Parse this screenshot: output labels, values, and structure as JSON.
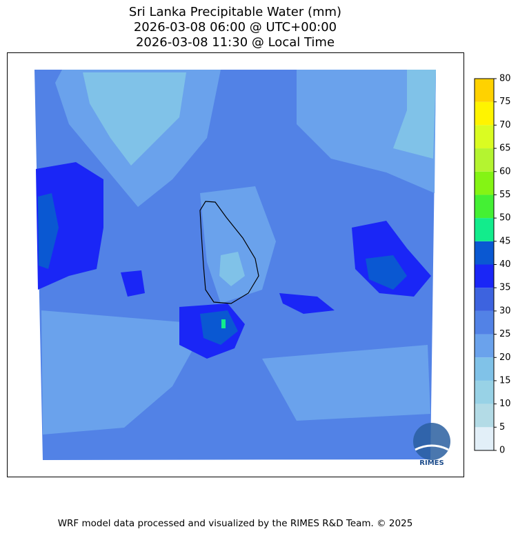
{
  "title": [
    "Sri Lanka Precipitable Water (mm)",
    "2026-03-08 06:00 @ UTC+00:00",
    "2026-03-08 11:30 @ Local Time"
  ],
  "colorbar": {
    "ticks": [
      0,
      5,
      10,
      15,
      20,
      25,
      30,
      35,
      40,
      45,
      50,
      55,
      60,
      65,
      70,
      75,
      80
    ],
    "colors": [
      "#e2eff8",
      "#b3dbe6",
      "#98d2e6",
      "#80c2e8",
      "#6aa2ec",
      "#5282e6",
      "#3d63df",
      "#1a26f6",
      "#0a58d2",
      "#12ec8c",
      "#44f034",
      "#84f414",
      "#b4f430",
      "#dafc22",
      "#fff400",
      "#ffd200"
    ]
  },
  "logo": "RIMES",
  "footer": "WRF model data processed and visualized by the RIMES R&D Team. © 2025"
}
